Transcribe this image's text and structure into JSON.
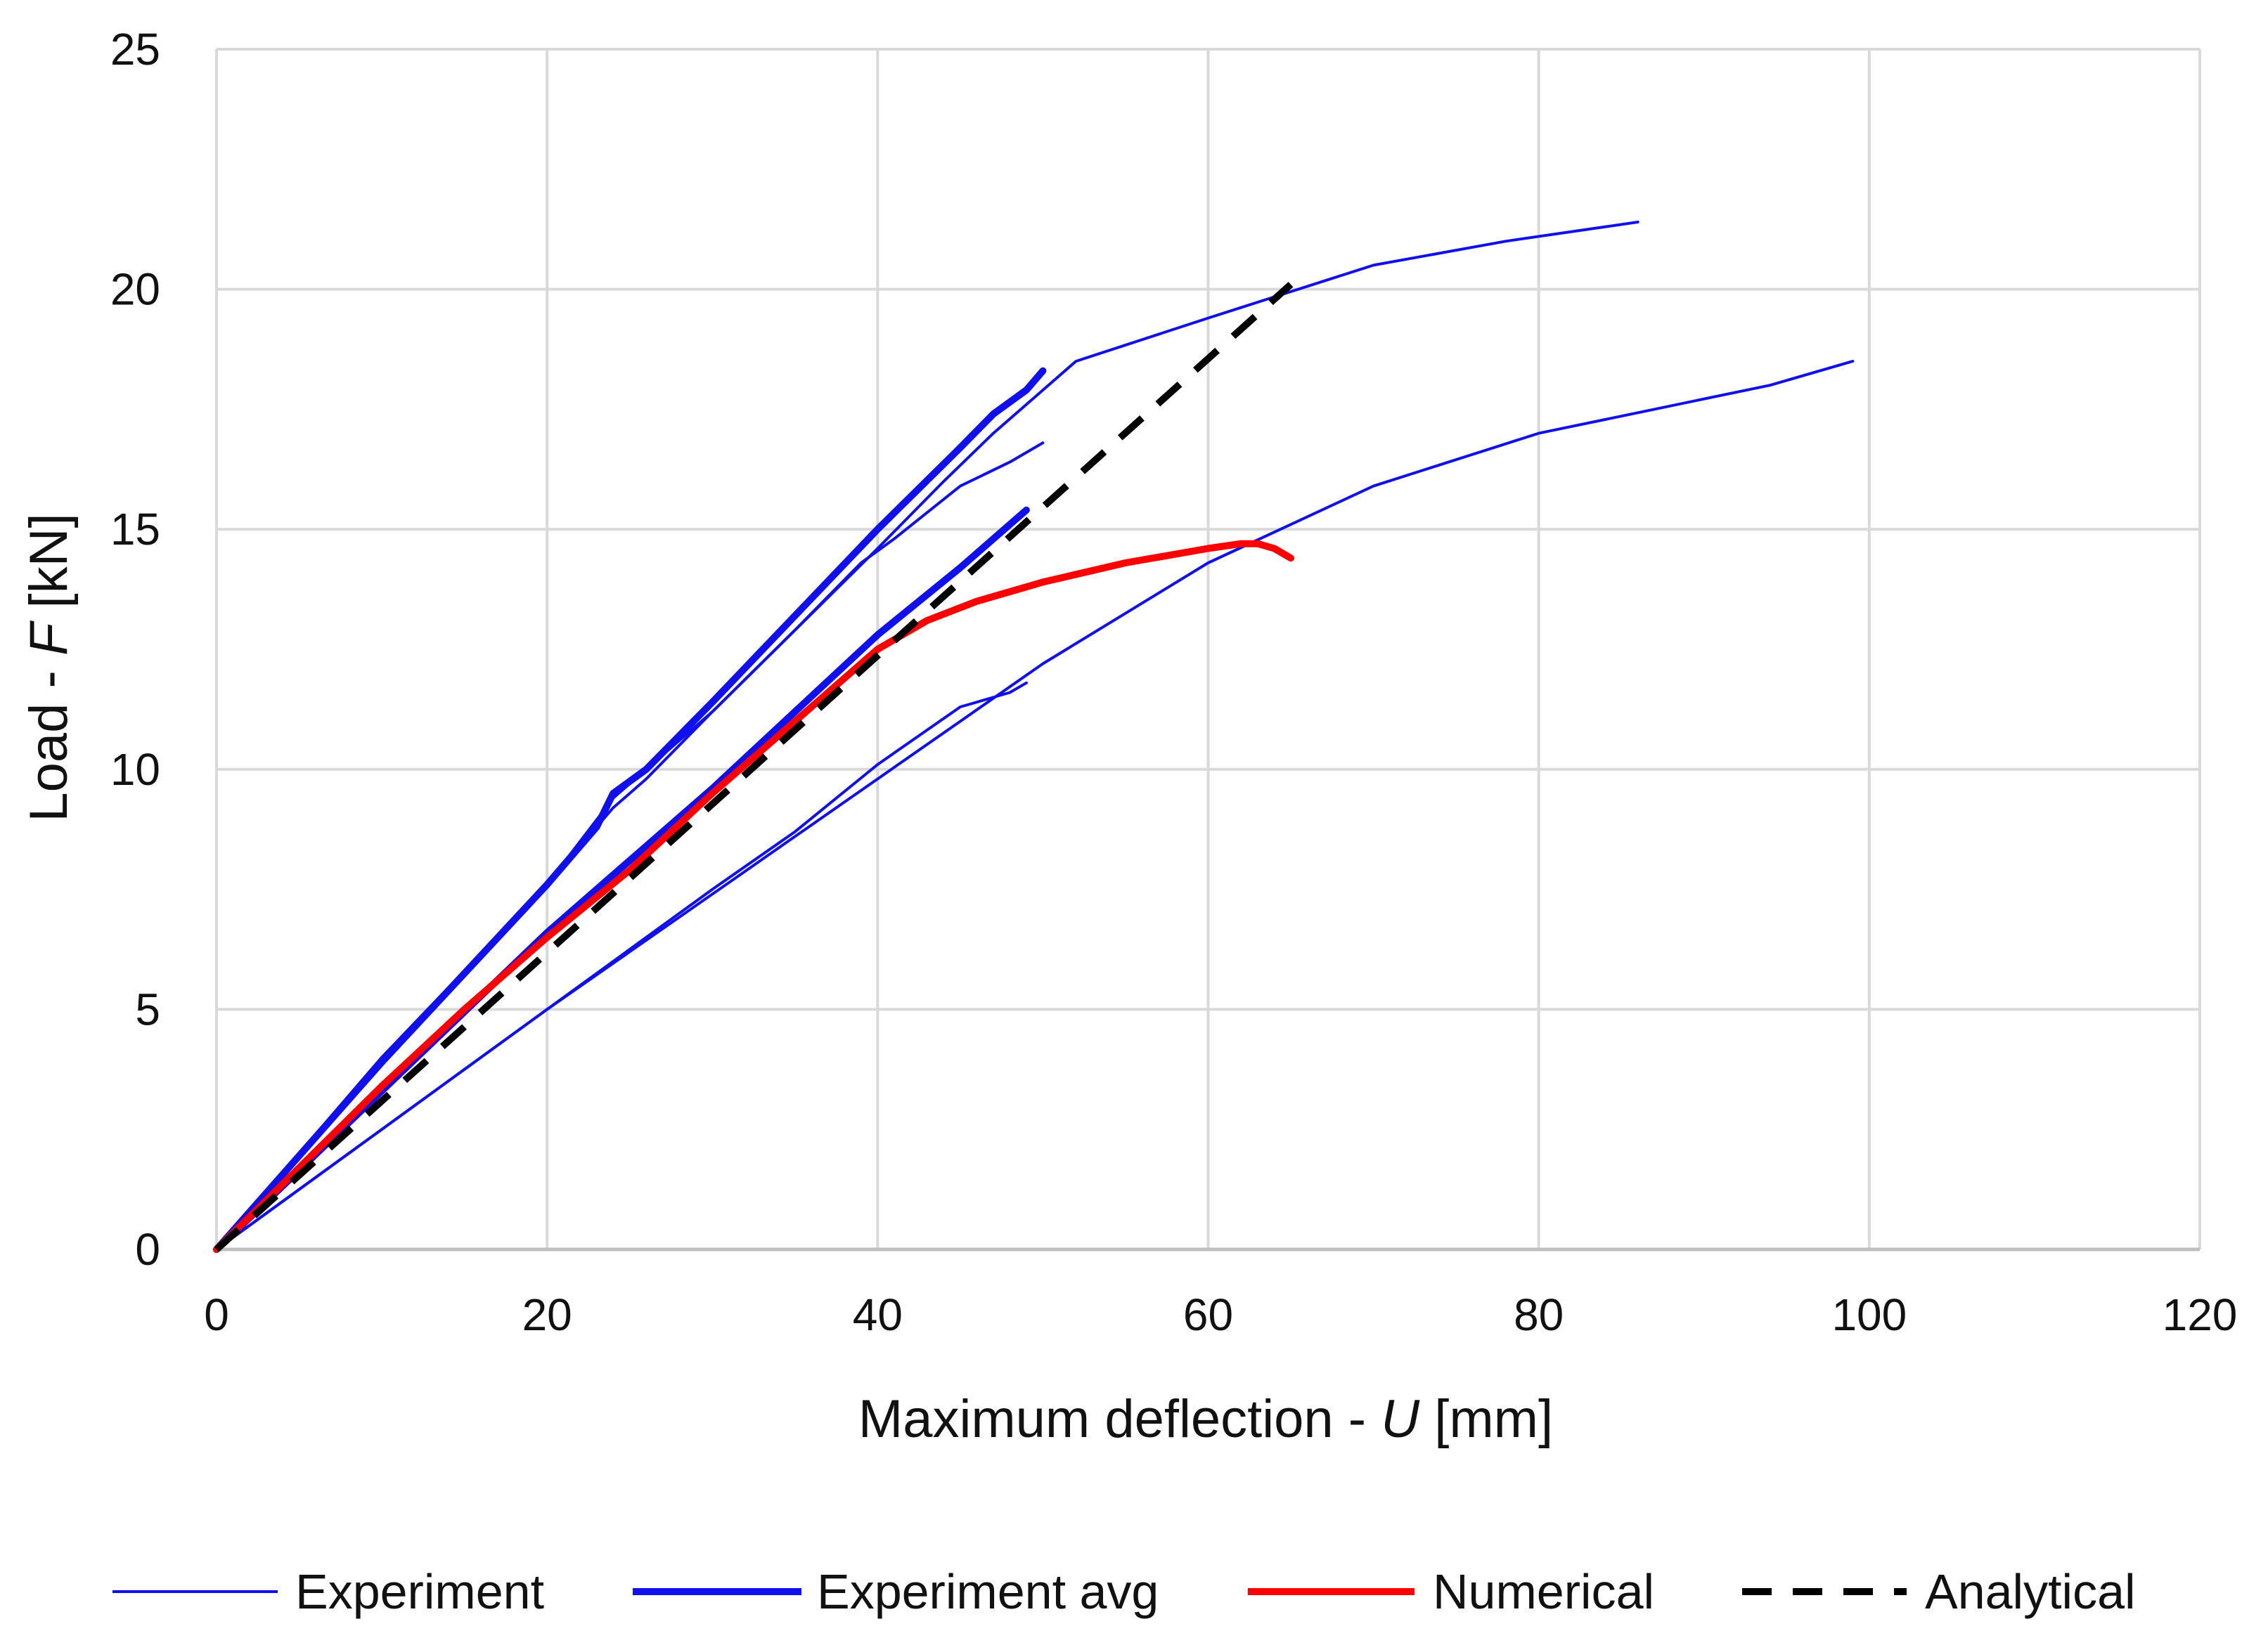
{
  "chart_data": {
    "type": "line",
    "title": "",
    "xlabel_prefix": "Maximum deflection - ",
    "xlabel_var": "U",
    "xlabel_suffix": " [mm]",
    "ylabel_prefix": "Load - ",
    "ylabel_var": "F",
    "ylabel_suffix": " [kN]",
    "xlim": [
      0,
      120
    ],
    "ylim": [
      0,
      25
    ],
    "xticks": [
      0,
      20,
      40,
      60,
      80,
      100,
      120
    ],
    "yticks": [
      0,
      5,
      10,
      15,
      20,
      25
    ],
    "grid": true,
    "legend_position": "bottom",
    "legend": [
      {
        "name": "Experiment",
        "color": "#1010ee",
        "style": "solid",
        "weight": "thin"
      },
      {
        "name": "Experiment avg",
        "color": "#1010ee",
        "style": "solid",
        "weight": "thick"
      },
      {
        "name": "Numerical",
        "color": "#ff0000",
        "style": "solid",
        "weight": "thick"
      },
      {
        "name": "Analytical",
        "color": "#000000",
        "style": "dashed",
        "weight": "thick"
      }
    ],
    "series": [
      {
        "name": "Experiment",
        "color": "#1010ee",
        "width": 4,
        "x": [
          0,
          10,
          20,
          24,
          26,
          30,
          35,
          39,
          41,
          45,
          48,
          50
        ],
        "y": [
          0,
          4.0,
          7.6,
          9.2,
          9.8,
          11.2,
          12.9,
          14.3,
          14.8,
          15.9,
          16.4,
          16.8
        ]
      },
      {
        "name": "Experiment",
        "color": "#1010ee",
        "width": 4,
        "x": [
          0,
          10,
          20,
          24,
          30,
          35,
          40,
          44,
          47,
          50,
          52,
          60,
          70,
          78,
          86
        ],
        "y": [
          0,
          4.0,
          7.6,
          9.4,
          11.2,
          12.9,
          14.6,
          16.0,
          17.0,
          17.9,
          18.5,
          19.4,
          20.5,
          21.0,
          21.4
        ]
      },
      {
        "name": "Experiment",
        "color": "#1010ee",
        "width": 4,
        "x": [
          0,
          10,
          20,
          25,
          30,
          35,
          40,
          45,
          50,
          60,
          70,
          80,
          87,
          94,
          99
        ],
        "y": [
          0,
          2.5,
          5.0,
          6.2,
          7.4,
          8.6,
          9.8,
          11.0,
          12.2,
          14.3,
          15.9,
          17.0,
          17.5,
          18.0,
          18.5
        ]
      },
      {
        "name": "Experiment",
        "color": "#1010ee",
        "width": 4,
        "x": [
          0,
          10,
          20,
          30,
          35,
          40,
          45,
          48,
          49
        ],
        "y": [
          0,
          2.5,
          5.0,
          7.5,
          8.7,
          10.1,
          11.3,
          11.6,
          11.8
        ]
      },
      {
        "name": "Experiment avg",
        "color": "#1010ee",
        "width": 10,
        "x": [
          0,
          10,
          20,
          23,
          24,
          26,
          30,
          35,
          40,
          45,
          47,
          49,
          50
        ],
        "y": [
          0,
          3.9,
          7.6,
          8.8,
          9.5,
          10.0,
          11.4,
          13.2,
          15.0,
          16.7,
          17.4,
          17.9,
          18.3
        ]
      },
      {
        "name": "Experiment avg",
        "color": "#1010ee",
        "width": 10,
        "x": [
          0,
          10,
          20,
          25,
          30,
          35,
          40,
          45,
          49
        ],
        "y": [
          0,
          3.3,
          6.6,
          8.1,
          9.6,
          11.2,
          12.8,
          14.2,
          15.4
        ]
      },
      {
        "name": "Numerical",
        "color": "#ff0000",
        "width": 10,
        "x": [
          0,
          5,
          10,
          15,
          20,
          25,
          30,
          35,
          38,
          40,
          43,
          46,
          50,
          55,
          60,
          62,
          63,
          64,
          65
        ],
        "y": [
          0,
          1.7,
          3.4,
          5.0,
          6.5,
          7.9,
          9.5,
          11.0,
          11.9,
          12.5,
          13.1,
          13.5,
          13.9,
          14.3,
          14.6,
          14.7,
          14.7,
          14.6,
          14.4
        ]
      },
      {
        "name": "Analytical",
        "color": "#000000",
        "width": 10,
        "dashed": true,
        "x": [
          0,
          65
        ],
        "y": [
          0,
          20.1
        ]
      }
    ]
  }
}
